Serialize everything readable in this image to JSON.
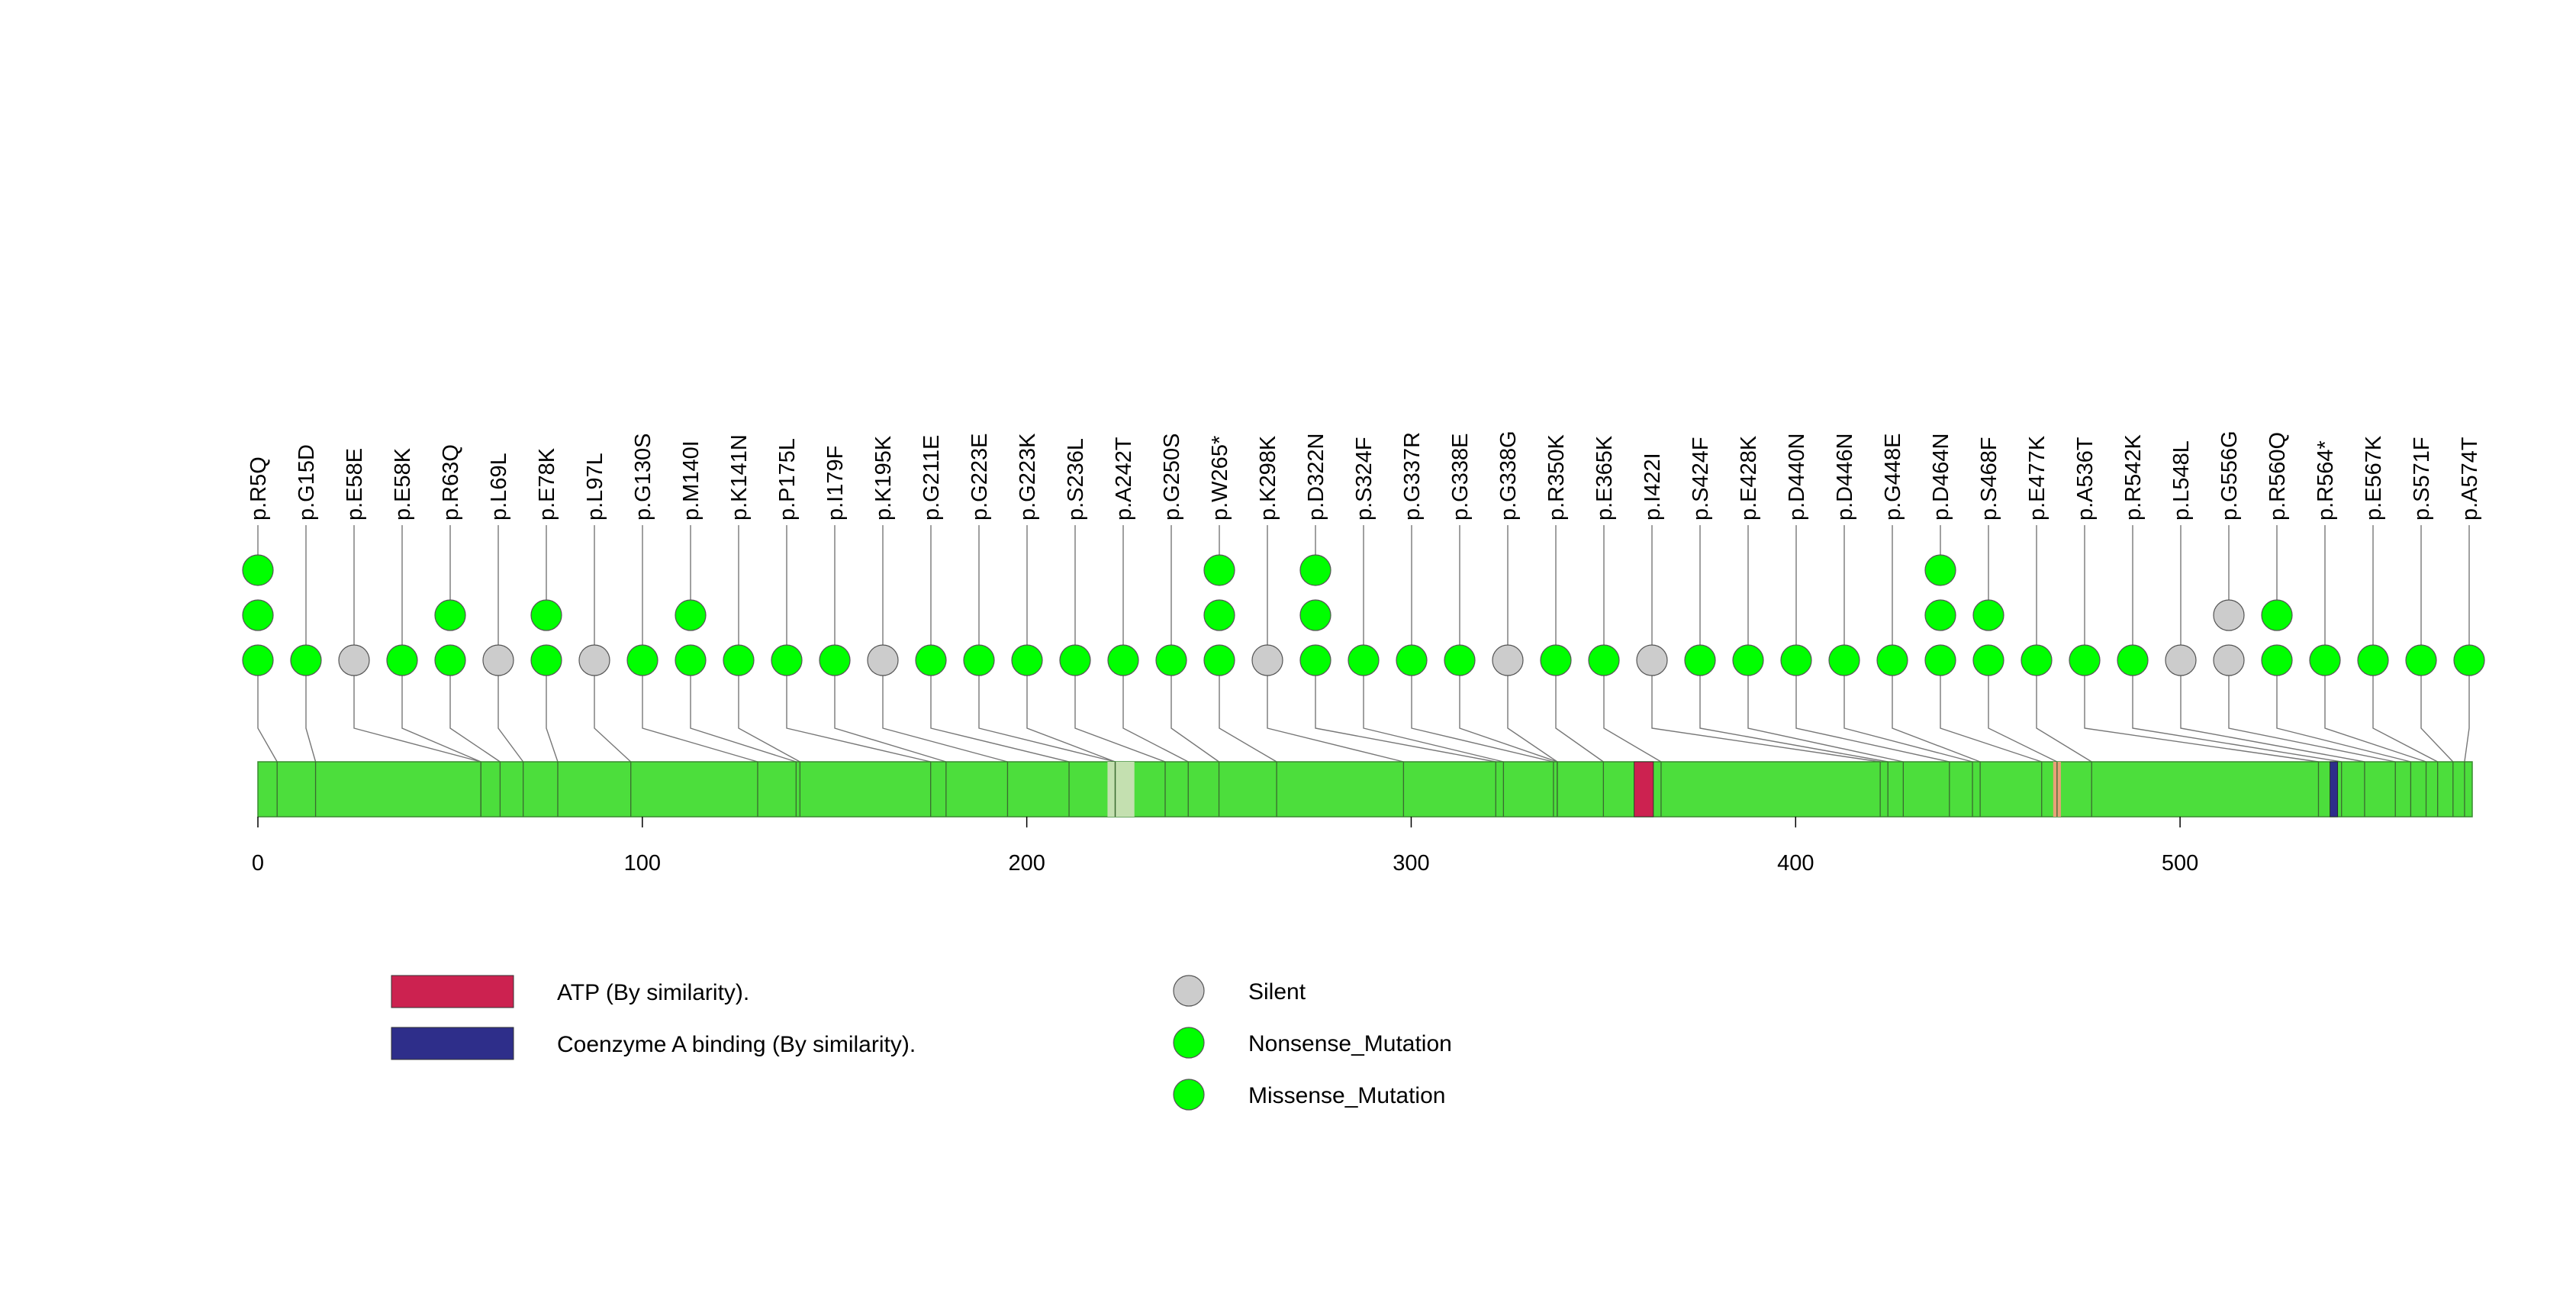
{
  "chart_data": {
    "type": "lollipop",
    "protein_length": 576,
    "axis": {
      "ticks": [
        0,
        100,
        200,
        300,
        400,
        500
      ],
      "xlim": [
        0,
        576
      ]
    },
    "colors": {
      "protein": "#4cde3c",
      "missense": "#00ff00",
      "nonsense": "#00ff00",
      "silent": "#cccccc",
      "atp": "#cc2250",
      "coa": "#2e2e8a",
      "light_domain": "#c4e0b0",
      "salmon_domain": "#e8a078"
    },
    "domains": [
      {
        "label": "ATP (By similarity).",
        "start": 358,
        "end": 363,
        "color": "#cc2250"
      },
      {
        "label": "Coenzyme A binding (By similarity).",
        "start": 539,
        "end": 541,
        "color": "#2e2e8a"
      },
      {
        "label": "",
        "start": 221,
        "end": 228,
        "color": "#c4e0b0"
      },
      {
        "label": "",
        "start": 467,
        "end": 469,
        "color": "#e8a078"
      }
    ],
    "mutations": [
      {
        "label": "p.R5Q",
        "position": 5,
        "stack": [
          "missense",
          "missense",
          "missense"
        ]
      },
      {
        "label": "p.G15D",
        "position": 15,
        "stack": [
          "missense"
        ]
      },
      {
        "label": "p.E58E",
        "position": 58,
        "stack": [
          "silent"
        ]
      },
      {
        "label": "p.E58K",
        "position": 58,
        "stack": [
          "missense"
        ]
      },
      {
        "label": "p.R63Q",
        "position": 63,
        "stack": [
          "missense",
          "missense"
        ]
      },
      {
        "label": "p.L69L",
        "position": 69,
        "stack": [
          "silent"
        ]
      },
      {
        "label": "p.E78K",
        "position": 78,
        "stack": [
          "missense",
          "missense"
        ]
      },
      {
        "label": "p.L97L",
        "position": 97,
        "stack": [
          "silent"
        ]
      },
      {
        "label": "p.G130S",
        "position": 130,
        "stack": [
          "missense"
        ]
      },
      {
        "label": "p.M140I",
        "position": 140,
        "stack": [
          "missense",
          "missense"
        ]
      },
      {
        "label": "p.K141N",
        "position": 141,
        "stack": [
          "missense"
        ]
      },
      {
        "label": "p.P175L",
        "position": 175,
        "stack": [
          "missense"
        ]
      },
      {
        "label": "p.I179F",
        "position": 179,
        "stack": [
          "missense"
        ]
      },
      {
        "label": "p.K195K",
        "position": 195,
        "stack": [
          "silent"
        ]
      },
      {
        "label": "p.G211E",
        "position": 211,
        "stack": [
          "missense"
        ]
      },
      {
        "label": "p.G223E",
        "position": 223,
        "stack": [
          "missense"
        ]
      },
      {
        "label": "p.G223K",
        "position": 223,
        "stack": [
          "missense"
        ]
      },
      {
        "label": "p.S236L",
        "position": 236,
        "stack": [
          "missense"
        ]
      },
      {
        "label": "p.A242T",
        "position": 242,
        "stack": [
          "missense"
        ]
      },
      {
        "label": "p.G250S",
        "position": 250,
        "stack": [
          "missense"
        ]
      },
      {
        "label": "p.W265*",
        "position": 265,
        "stack": [
          "nonsense",
          "nonsense",
          "nonsense"
        ]
      },
      {
        "label": "p.K298K",
        "position": 298,
        "stack": [
          "silent"
        ]
      },
      {
        "label": "p.D322N",
        "position": 322,
        "stack": [
          "missense",
          "missense",
          "missense"
        ]
      },
      {
        "label": "p.S324F",
        "position": 324,
        "stack": [
          "missense"
        ]
      },
      {
        "label": "p.G337R",
        "position": 337,
        "stack": [
          "missense"
        ]
      },
      {
        "label": "p.G338E",
        "position": 338,
        "stack": [
          "missense"
        ]
      },
      {
        "label": "p.G338G",
        "position": 338,
        "stack": [
          "silent"
        ]
      },
      {
        "label": "p.R350K",
        "position": 350,
        "stack": [
          "missense"
        ]
      },
      {
        "label": "p.E365K",
        "position": 365,
        "stack": [
          "missense"
        ]
      },
      {
        "label": "p.I422I",
        "position": 422,
        "stack": [
          "silent"
        ]
      },
      {
        "label": "p.S424F",
        "position": 424,
        "stack": [
          "missense"
        ]
      },
      {
        "label": "p.E428K",
        "position": 428,
        "stack": [
          "missense"
        ]
      },
      {
        "label": "p.D440N",
        "position": 440,
        "stack": [
          "missense"
        ]
      },
      {
        "label": "p.D446N",
        "position": 446,
        "stack": [
          "missense"
        ]
      },
      {
        "label": "p.G448E",
        "position": 448,
        "stack": [
          "missense"
        ]
      },
      {
        "label": "p.D464N",
        "position": 464,
        "stack": [
          "missense",
          "missense",
          "missense"
        ]
      },
      {
        "label": "p.S468F",
        "position": 468,
        "stack": [
          "missense",
          "missense"
        ]
      },
      {
        "label": "p.E477K",
        "position": 477,
        "stack": [
          "missense"
        ]
      },
      {
        "label": "p.A536T",
        "position": 536,
        "stack": [
          "missense"
        ]
      },
      {
        "label": "p.R542K",
        "position": 542,
        "stack": [
          "missense"
        ]
      },
      {
        "label": "p.L548L",
        "position": 548,
        "stack": [
          "silent"
        ]
      },
      {
        "label": "p.G556G",
        "position": 556,
        "stack": [
          "silent",
          "silent"
        ]
      },
      {
        "label": "p.R560Q",
        "position": 560,
        "stack": [
          "missense",
          "missense"
        ]
      },
      {
        "label": "p.R564*",
        "position": 564,
        "stack": [
          "nonsense"
        ]
      },
      {
        "label": "p.E567K",
        "position": 567,
        "stack": [
          "missense"
        ]
      },
      {
        "label": "p.S571F",
        "position": 571,
        "stack": [
          "missense"
        ]
      },
      {
        "label": "p.A574T",
        "position": 574,
        "stack": [
          "missense"
        ]
      }
    ],
    "legend": {
      "domains": [
        {
          "label": "ATP (By similarity).",
          "color": "#cc2250"
        },
        {
          "label": "Coenzyme A binding (By similarity).",
          "color": "#2e2e8a"
        }
      ],
      "mutation_types": [
        {
          "label": "Silent",
          "color": "#cccccc"
        },
        {
          "label": "Nonsense_Mutation",
          "color": "#00ff00"
        },
        {
          "label": "Missense_Mutation",
          "color": "#00ff00"
        }
      ]
    }
  }
}
